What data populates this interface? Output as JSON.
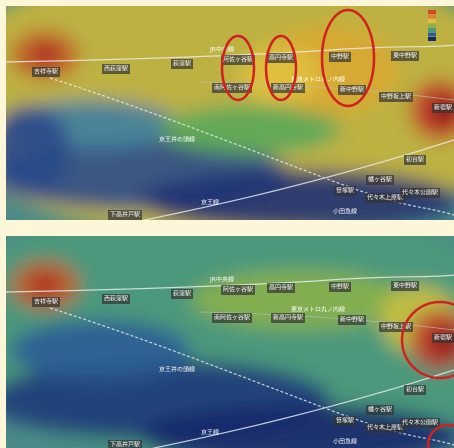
{
  "panels": [
    {
      "labels": [
        "吉祥寺駅",
        "西荻窪駅",
        "荻窪駅",
        "JR中央線",
        "阿佐ヶ谷駅",
        "高円寺駅",
        "中野駅",
        "東中野駅",
        "東京メトロ丸ノ内線",
        "南阿佐ヶ谷駅",
        "新高円寺駅",
        "新中野駅",
        "中野坂上駅",
        "新宿駅",
        "京王井の頭線",
        "初台駅",
        "幡ヶ谷駅",
        "笹塚駅",
        "代々木上原駅",
        "代々木公園駅",
        "京王線",
        "下高井戸駅",
        "小田急線"
      ]
    },
    {
      "labels": [
        "吉祥寺駅",
        "西荻窪駅",
        "荻窪駅",
        "JR中央線",
        "阿佐ヶ谷駅",
        "高円寺駅",
        "中野駅",
        "東中野駅",
        "東京メトロ丸ノ内線",
        "南阿佐ヶ谷駅",
        "新高円寺駅",
        "新中野駅",
        "中野坂上駅",
        "新宿駅",
        "京王井の頭線",
        "初台駅",
        "幡ヶ谷駅",
        "笹塚駅",
        "代々木上原駅",
        "代々木公園駅",
        "京王線",
        "下高井戸駅",
        "小田急線"
      ]
    }
  ]
}
